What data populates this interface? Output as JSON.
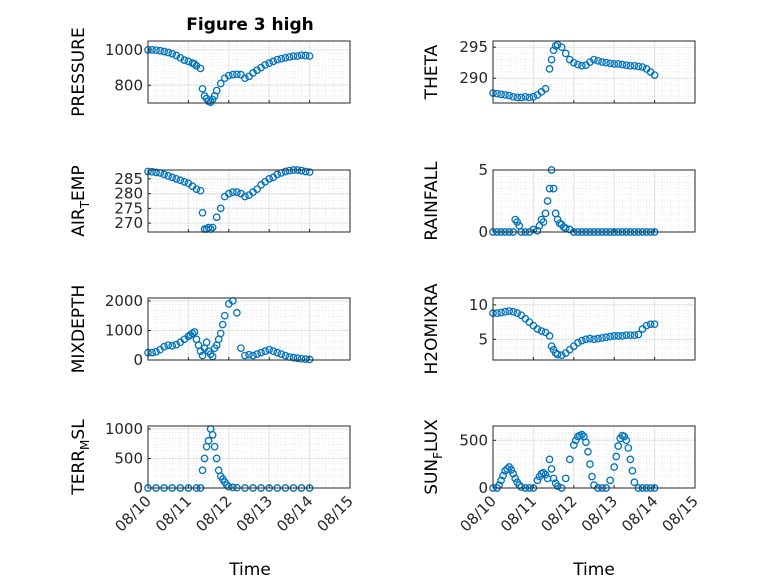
{
  "figure": {
    "title": "Figure 3 high"
  },
  "x_ticks": [
    "08/10",
    "08/11",
    "08/12",
    "08/13",
    "08/14",
    "08/15"
  ],
  "x_label": "Time",
  "colors": {
    "marker": "#0072BD",
    "grid": "#d9d9d9",
    "axis": "#262626"
  },
  "chart_data": [
    {
      "type": "scatter",
      "ylabel": "PRESSURE",
      "xlim": [
        "08/10",
        "08/15"
      ],
      "ylim": [
        700,
        1050
      ],
      "yticks": [
        800,
        1000
      ],
      "ytick_labels": [
        "800",
        "1000"
      ],
      "x": [
        0,
        0.1,
        0.2,
        0.3,
        0.4,
        0.5,
        0.6,
        0.7,
        0.8,
        0.9,
        1.0,
        1.1,
        1.15,
        1.2,
        1.3,
        1.35,
        1.4,
        1.45,
        1.5,
        1.55,
        1.6,
        1.65,
        1.7,
        1.8,
        1.9,
        2.0,
        2.1,
        2.2,
        2.3,
        2.4,
        2.5,
        2.6,
        2.7,
        2.8,
        2.9,
        3.0,
        3.1,
        3.2,
        3.3,
        3.4,
        3.5,
        3.6,
        3.7,
        3.8,
        3.9,
        4.0
      ],
      "y": [
        1000,
        1000,
        998,
        995,
        990,
        985,
        978,
        968,
        955,
        942,
        935,
        925,
        920,
        910,
        895,
        780,
        740,
        725,
        710,
        705,
        720,
        740,
        770,
        810,
        840,
        855,
        860,
        862,
        860,
        840,
        850,
        870,
        885,
        900,
        915,
        925,
        935,
        945,
        950,
        955,
        960,
        965,
        965,
        970,
        968,
        965
      ]
    },
    {
      "type": "scatter",
      "ylabel": "THETA",
      "xlim": [
        "08/10",
        "08/15"
      ],
      "ylim": [
        286,
        296
      ],
      "yticks": [
        290,
        295
      ],
      "ytick_labels": [
        "290",
        "295"
      ],
      "x": [
        0,
        0.1,
        0.2,
        0.3,
        0.4,
        0.5,
        0.6,
        0.7,
        0.8,
        0.9,
        1.0,
        1.1,
        1.2,
        1.3,
        1.4,
        1.45,
        1.5,
        1.55,
        1.6,
        1.7,
        1.8,
        1.9,
        2.0,
        2.1,
        2.2,
        2.3,
        2.4,
        2.5,
        2.6,
        2.7,
        2.8,
        2.9,
        3.0,
        3.1,
        3.2,
        3.3,
        3.4,
        3.5,
        3.6,
        3.7,
        3.8,
        3.9,
        4.0
      ],
      "y": [
        287.6,
        287.5,
        287.4,
        287.3,
        287.2,
        287.0,
        286.9,
        286.9,
        287.0,
        286.9,
        287.0,
        287.3,
        287.8,
        288.3,
        291.5,
        293.0,
        294.5,
        295.2,
        295.4,
        295.0,
        294.0,
        293.0,
        292.5,
        292.2,
        292.0,
        292.1,
        292.6,
        293.0,
        292.8,
        292.6,
        292.5,
        292.4,
        292.3,
        292.3,
        292.2,
        292.1,
        292.0,
        292.0,
        291.9,
        291.8,
        291.5,
        291.0,
        290.5
      ]
    },
    {
      "type": "scatter",
      "ylabel": "AIR_TEMP",
      "xlim": [
        "08/10",
        "08/15"
      ],
      "ylim": [
        267,
        288
      ],
      "yticks": [
        270,
        275,
        280,
        285
      ],
      "ytick_labels": [
        "270",
        "275",
        "280",
        "285"
      ],
      "x": [
        0,
        0.1,
        0.2,
        0.3,
        0.4,
        0.5,
        0.6,
        0.7,
        0.8,
        0.9,
        1.0,
        1.1,
        1.2,
        1.3,
        1.35,
        1.4,
        1.45,
        1.5,
        1.55,
        1.6,
        1.7,
        1.8,
        1.9,
        2.0,
        2.1,
        2.2,
        2.3,
        2.4,
        2.5,
        2.6,
        2.7,
        2.8,
        2.9,
        3.0,
        3.1,
        3.2,
        3.3,
        3.4,
        3.5,
        3.6,
        3.7,
        3.8,
        3.9,
        4.0
      ],
      "y": [
        287.5,
        287.4,
        287.2,
        287.0,
        286.5,
        286.0,
        285.5,
        285.0,
        284.5,
        284.0,
        283.5,
        282.5,
        281.5,
        281.0,
        273.5,
        268.0,
        268.0,
        268.5,
        268.0,
        268.5,
        272.0,
        275.0,
        279.0,
        280.0,
        280.5,
        280.5,
        280.0,
        279.0,
        279.5,
        280.5,
        281.5,
        283.0,
        284.0,
        285.0,
        285.5,
        286.5,
        287.0,
        287.5,
        287.8,
        288.0,
        288.2,
        287.8,
        287.5,
        287.3
      ]
    },
    {
      "type": "scatter",
      "ylabel": "RAINFALL",
      "xlim": [
        "08/10",
        "08/15"
      ],
      "ylim": [
        0,
        5
      ],
      "yticks": [
        0,
        5
      ],
      "ytick_labels": [
        "0",
        "5"
      ],
      "x": [
        0,
        0.1,
        0.2,
        0.3,
        0.4,
        0.5,
        0.55,
        0.6,
        0.65,
        0.7,
        0.8,
        0.9,
        1.0,
        1.1,
        1.15,
        1.2,
        1.25,
        1.3,
        1.35,
        1.4,
        1.45,
        1.5,
        1.55,
        1.6,
        1.65,
        1.7,
        1.75,
        1.8,
        1.9,
        2.0,
        2.1,
        2.2,
        2.3,
        2.4,
        2.5,
        2.6,
        2.7,
        2.8,
        2.9,
        3.0,
        3.1,
        3.2,
        3.3,
        3.4,
        3.5,
        3.6,
        3.7,
        3.8,
        3.9,
        4.0
      ],
      "y": [
        0,
        0,
        0,
        0,
        0,
        0,
        1.0,
        0.8,
        0.5,
        0,
        0,
        0,
        0.2,
        0.1,
        0.5,
        1.0,
        0.8,
        1.5,
        2.5,
        3.5,
        5.0,
        3.5,
        1.5,
        1.0,
        0.7,
        0.6,
        0.4,
        0.3,
        0.2,
        0,
        0,
        0,
        0,
        0,
        0,
        0,
        0,
        0,
        0,
        0,
        0,
        0,
        0,
        0,
        0,
        0,
        0,
        0,
        0,
        0
      ]
    },
    {
      "type": "scatter",
      "ylabel": "MIXDEPTH",
      "xlim": [
        "08/10",
        "08/15"
      ],
      "ylim": [
        0,
        2100
      ],
      "yticks": [
        0,
        1000,
        2000
      ],
      "ytick_labels": [
        "0",
        "1000",
        "2000"
      ],
      "x": [
        0,
        0.1,
        0.2,
        0.3,
        0.4,
        0.5,
        0.6,
        0.7,
        0.8,
        0.9,
        1.0,
        1.05,
        1.1,
        1.15,
        1.2,
        1.25,
        1.3,
        1.35,
        1.4,
        1.45,
        1.5,
        1.55,
        1.6,
        1.65,
        1.7,
        1.75,
        1.8,
        1.85,
        1.9,
        2.0,
        2.1,
        2.2,
        2.3,
        2.4,
        2.5,
        2.6,
        2.7,
        2.8,
        2.9,
        3.0,
        3.1,
        3.2,
        3.3,
        3.4,
        3.5,
        3.6,
        3.7,
        3.8,
        3.9,
        4.0
      ],
      "y": [
        250,
        250,
        280,
        350,
        450,
        500,
        480,
        520,
        600,
        700,
        800,
        850,
        900,
        950,
        700,
        500,
        300,
        150,
        400,
        600,
        300,
        200,
        120,
        400,
        500,
        700,
        900,
        1200,
        1500,
        1900,
        2000,
        1600,
        400,
        150,
        180,
        150,
        200,
        250,
        300,
        350,
        300,
        250,
        200,
        150,
        100,
        80,
        60,
        40,
        30,
        20
      ]
    },
    {
      "type": "scatter",
      "ylabel": "H2OMIXRA",
      "xlim": [
        "08/10",
        "08/15"
      ],
      "ylim": [
        2,
        11
      ],
      "yticks": [
        5,
        10
      ],
      "ytick_labels": [
        "5",
        "10"
      ],
      "x": [
        0,
        0.1,
        0.2,
        0.3,
        0.4,
        0.5,
        0.6,
        0.7,
        0.8,
        0.9,
        1.0,
        1.1,
        1.2,
        1.3,
        1.4,
        1.45,
        1.5,
        1.55,
        1.6,
        1.7,
        1.8,
        1.9,
        2.0,
        2.1,
        2.2,
        2.3,
        2.4,
        2.5,
        2.6,
        2.7,
        2.8,
        2.9,
        3.0,
        3.1,
        3.2,
        3.3,
        3.4,
        3.5,
        3.6,
        3.7,
        3.8,
        3.9,
        4.0
      ],
      "y": [
        8.8,
        8.8,
        8.9,
        9.0,
        9.1,
        9.0,
        8.8,
        8.5,
        8.0,
        7.5,
        7.0,
        6.5,
        6.2,
        6.0,
        5.5,
        4.0,
        3.5,
        3.0,
        2.8,
        2.7,
        3.0,
        3.5,
        4.0,
        4.5,
        4.8,
        5.0,
        5.1,
        5.0,
        5.1,
        5.2,
        5.3,
        5.4,
        5.5,
        5.5,
        5.5,
        5.6,
        5.6,
        5.6,
        5.7,
        6.5,
        7.0,
        7.2,
        7.2
      ]
    },
    {
      "type": "scatter",
      "ylabel": "TERR_MSL",
      "xlim": [
        "08/10",
        "08/15"
      ],
      "ylim": [
        0,
        1050
      ],
      "yticks": [
        0,
        500,
        1000
      ],
      "ytick_labels": [
        "0",
        "500",
        "1000"
      ],
      "x": [
        0,
        0.2,
        0.4,
        0.6,
        0.8,
        1.0,
        1.2,
        1.3,
        1.35,
        1.4,
        1.45,
        1.5,
        1.55,
        1.6,
        1.65,
        1.7,
        1.75,
        1.8,
        1.85,
        1.9,
        1.95,
        2.0,
        2.1,
        2.2,
        2.4,
        2.6,
        2.8,
        3.0,
        3.2,
        3.4,
        3.6,
        3.8,
        4.0
      ],
      "y": [
        0,
        0,
        0,
        0,
        0,
        0,
        0,
        0,
        300,
        500,
        700,
        800,
        1000,
        900,
        700,
        500,
        300,
        200,
        150,
        100,
        50,
        20,
        10,
        5,
        0,
        0,
        0,
        0,
        0,
        0,
        0,
        0,
        0
      ]
    },
    {
      "type": "scatter",
      "ylabel": "SUN_FLUX",
      "xlim": [
        "08/10",
        "08/15"
      ],
      "ylim": [
        0,
        650
      ],
      "yticks": [
        0,
        500
      ],
      "ytick_labels": [
        "0",
        "500"
      ],
      "x": [
        0,
        0.1,
        0.15,
        0.2,
        0.25,
        0.3,
        0.35,
        0.4,
        0.45,
        0.5,
        0.55,
        0.6,
        0.65,
        0.7,
        0.8,
        0.9,
        1.0,
        1.1,
        1.15,
        1.2,
        1.25,
        1.3,
        1.35,
        1.4,
        1.45,
        1.5,
        1.55,
        1.6,
        1.7,
        1.8,
        1.9,
        2.0,
        2.05,
        2.1,
        2.15,
        2.2,
        2.25,
        2.3,
        2.35,
        2.4,
        2.45,
        2.5,
        2.6,
        2.7,
        2.8,
        2.9,
        3.0,
        3.05,
        3.1,
        3.15,
        3.2,
        3.25,
        3.3,
        3.35,
        3.4,
        3.45,
        3.5,
        3.6,
        3.7,
        3.8,
        3.9,
        4.0
      ],
      "y": [
        0,
        0,
        30,
        80,
        130,
        180,
        200,
        220,
        190,
        150,
        100,
        60,
        30,
        10,
        0,
        0,
        0,
        80,
        120,
        150,
        160,
        140,
        100,
        300,
        200,
        100,
        50,
        20,
        0,
        100,
        300,
        450,
        500,
        540,
        550,
        560,
        540,
        480,
        380,
        250,
        120,
        30,
        0,
        0,
        0,
        80,
        220,
        330,
        440,
        520,
        550,
        540,
        500,
        420,
        300,
        180,
        60,
        0,
        0,
        0,
        0,
        0
      ]
    }
  ]
}
